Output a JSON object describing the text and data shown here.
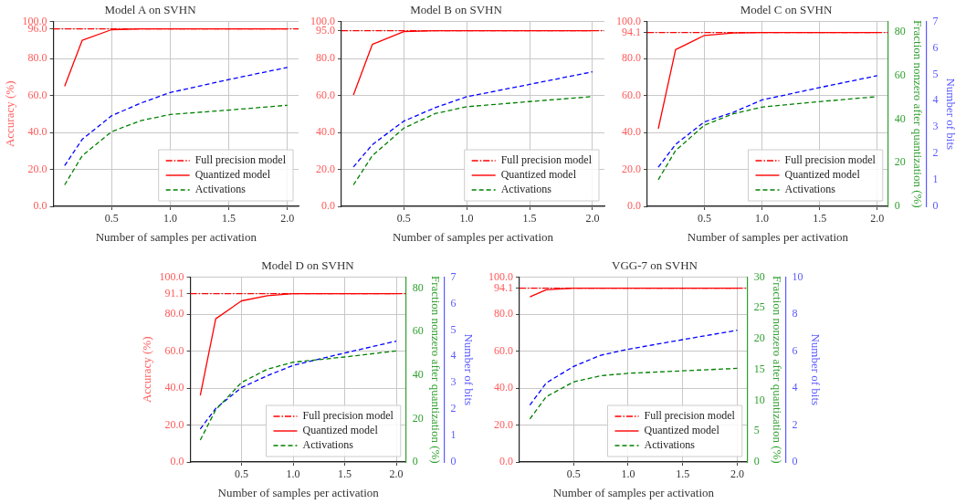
{
  "chart_data": [
    {
      "type": "line",
      "title": "Model A on SVHN",
      "xlabel": "Number of samples per activation",
      "ylabel": "Accuracy (%)",
      "x": [
        0.1,
        0.25,
        0.5,
        0.75,
        1.0,
        1.5,
        2.0
      ],
      "series": [
        {
          "name": "Quantized model",
          "color": "#ff0000",
          "line_style": "solid",
          "values": [
            65,
            89.9,
            95.6,
            96.0,
            96.0,
            96.0,
            96.0
          ]
        },
        {
          "name": "Activations",
          "color": "#008000",
          "line_style": "dashed",
          "values": [
            11.6,
            27.4,
            40.4,
            46.4,
            49.7,
            52.1,
            54.7
          ]
        },
        {
          "color": "#0000ff",
          "line_style": "dashed",
          "values": [
            22,
            36.3,
            49,
            55.9,
            61.6,
            68.6,
            75.2
          ]
        }
      ],
      "ref_lines": [
        {
          "axis": "y",
          "value": 96.0,
          "label": "Full precision model",
          "color": "#ff0000",
          "line_style": "dashed"
        }
      ],
      "xlim": [
        0.005,
        2.095
      ],
      "xticks": [
        {
          "value": 0.5,
          "label": "0.5"
        },
        {
          "value": 1.0,
          "label": "1.0"
        },
        {
          "value": 1.5,
          "label": "1.5"
        },
        {
          "value": 2.0,
          "label": "2.0"
        }
      ],
      "ylim": [
        0,
        100
      ],
      "yticks": [
        {
          "value": 0,
          "label": "0.0"
        },
        {
          "value": 20,
          "label": "20.0"
        },
        {
          "value": 40,
          "label": "40.0"
        },
        {
          "value": 60,
          "label": "60.0"
        },
        {
          "value": 80,
          "label": "80.0"
        },
        {
          "value": 96,
          "label": "96.0"
        },
        {
          "value": 100,
          "label": "100.0"
        }
      ],
      "grid": true,
      "legend": "lower right"
    },
    {
      "type": "line",
      "title": "Model B on SVHN",
      "xlabel": "Number of samples per activation",
      "x": [
        0.1,
        0.25,
        0.5,
        0.75,
        1.0,
        1.5,
        2.0
      ],
      "series": [
        {
          "name": "Quantized model",
          "color": "#ff0000",
          "line_style": "solid",
          "values": [
            60.3,
            87.6,
            94.6,
            95.0,
            95.0,
            95.0,
            95.0
          ]
        },
        {
          "name": "Activations",
          "color": "#008000",
          "line_style": "dashed",
          "values": [
            11.6,
            27.4,
            42.3,
            50.2,
            53.9,
            56.7,
            59.4
          ]
        },
        {
          "color": "#0000ff",
          "line_style": "dashed",
          "values": [
            21.3,
            33.4,
            46.1,
            53.4,
            59.3,
            66,
            72.8
          ]
        }
      ],
      "ref_lines": [
        {
          "axis": "y",
          "value": 95.0,
          "label": "Full precision model",
          "color": "#ff0000",
          "line_style": "dashed"
        }
      ],
      "xlim": [
        0.005,
        2.095
      ],
      "xticks": [
        {
          "value": 0.5,
          "label": "0.5"
        },
        {
          "value": 1.0,
          "label": "1.0"
        },
        {
          "value": 1.5,
          "label": "1.5"
        },
        {
          "value": 2.0,
          "label": "2.0"
        }
      ],
      "ylim": [
        0,
        100
      ],
      "yticks": [
        {
          "value": 0,
          "label": "0.0"
        },
        {
          "value": 20,
          "label": "20.0"
        },
        {
          "value": 40,
          "label": "40.0"
        },
        {
          "value": 60,
          "label": "60.0"
        },
        {
          "value": 80,
          "label": "80.0"
        },
        {
          "value": 95,
          "label": "95.0"
        },
        {
          "value": 100,
          "label": "100.0"
        }
      ],
      "grid": true,
      "legend": "lower right"
    },
    {
      "type": "line",
      "title": "Model C on SVHN",
      "xlabel": "Number of samples per activation",
      "y2label": "Fraction nonzero after quantization (%)",
      "y3label": "Number of bits",
      "x": [
        0.1,
        0.25,
        0.5,
        0.75,
        1.0,
        1.5,
        2.0
      ],
      "series": [
        {
          "name": "Quantized model",
          "color": "#ff0000",
          "line_style": "solid",
          "values": [
            42,
            84.8,
            92.5,
            93.8,
            94.1,
            94.1,
            94.1
          ]
        },
        {
          "name": "Activations",
          "color": "#008000",
          "line_style": "dashed",
          "axis": "y2",
          "values": [
            12.2,
            25.6,
            37.2,
            42.4,
            45.5,
            48,
            50.3
          ]
        },
        {
          "color": "#0000ff",
          "line_style": "dashed",
          "axis": "y3",
          "values": [
            1.48,
            2.35,
            3.2,
            3.56,
            4.03,
            4.5,
            4.95
          ]
        }
      ],
      "ref_lines": [
        {
          "axis": "y",
          "value": 94.1,
          "label": "Full precision model",
          "color": "#ff0000",
          "line_style": "dashed"
        }
      ],
      "xlim": [
        0.005,
        2.095
      ],
      "xticks": [
        {
          "value": 0.5,
          "label": "0.5"
        },
        {
          "value": 1.0,
          "label": "1.0"
        },
        {
          "value": 1.5,
          "label": "1.5"
        },
        {
          "value": 2.0,
          "label": "2.0"
        }
      ],
      "ylim": [
        0,
        100
      ],
      "yticks": [
        {
          "value": 0,
          "label": "0.0"
        },
        {
          "value": 20,
          "label": "20.0"
        },
        {
          "value": 40,
          "label": "40.0"
        },
        {
          "value": 60,
          "label": "60.0"
        },
        {
          "value": 80,
          "label": "80.0"
        },
        {
          "value": 94.1,
          "label": "94.1"
        },
        {
          "value": 100,
          "label": "100.0"
        }
      ],
      "y2lim": [
        0,
        84.7
      ],
      "y2ticks": [
        0,
        20,
        40,
        60,
        80
      ],
      "y3lim": [
        0,
        7
      ],
      "y3ticks": [
        0,
        1,
        2,
        3,
        4,
        5,
        6,
        7
      ],
      "grid": true,
      "legend": "lower right"
    },
    {
      "type": "line",
      "title": "Model D on SVHN",
      "xlabel": "Number of samples per activation",
      "ylabel": "Accuracy (%)",
      "y2label": "Fraction nonzero after quantization (%)",
      "y3label": "Number of bits",
      "x": [
        0.1,
        0.25,
        0.5,
        0.75,
        1.0,
        1.5,
        2.0
      ],
      "series": [
        {
          "name": "Quantized model",
          "color": "#ff0000",
          "line_style": "solid",
          "values": [
            36,
            77.5,
            87.2,
            90,
            91.1,
            91.1,
            91.1
          ]
        },
        {
          "name": "Activations",
          "color": "#008000",
          "line_style": "dashed",
          "axis": "y2",
          "values": [
            10.1,
            24,
            36.6,
            42.7,
            45.9,
            48.3,
            51.1
          ]
        },
        {
          "color": "#0000ff",
          "line_style": "dashed",
          "axis": "y3",
          "values": [
            1.25,
            2.03,
            2.82,
            3.27,
            3.66,
            4.13,
            4.58
          ]
        }
      ],
      "ref_lines": [
        {
          "axis": "y",
          "value": 91.1,
          "label": "Full precision model",
          "color": "#ff0000",
          "line_style": "dashed"
        }
      ],
      "xlim": [
        0.005,
        2.095
      ],
      "xticks": [
        {
          "value": 0.5,
          "label": "0.5"
        },
        {
          "value": 1.0,
          "label": "1.0"
        },
        {
          "value": 1.5,
          "label": "1.5"
        },
        {
          "value": 2.0,
          "label": "2.0"
        }
      ],
      "ylim": [
        0,
        100
      ],
      "yticks": [
        {
          "value": 0,
          "label": "0.0"
        },
        {
          "value": 20,
          "label": "20.0"
        },
        {
          "value": 40,
          "label": "40.0"
        },
        {
          "value": 60,
          "label": "60.0"
        },
        {
          "value": 80,
          "label": "80.0"
        },
        {
          "value": 91.1,
          "label": "91.1"
        },
        {
          "value": 100,
          "label": "100.0"
        }
      ],
      "y2lim": [
        0,
        85
      ],
      "y2ticks": [
        0,
        20,
        40,
        60,
        80
      ],
      "y3lim": [
        0,
        7
      ],
      "y3ticks": [
        0,
        1,
        2,
        3,
        4,
        5,
        6,
        7
      ],
      "grid": true,
      "legend": "lower right"
    },
    {
      "type": "line",
      "title": "VGG-7 on SVHN",
      "xlabel": "Number of samples per activation",
      "y2label": "Fraction nonzero after quantization (%)",
      "y3label": "Number of bits",
      "x": [
        0.1,
        0.25,
        0.5,
        0.75,
        1.0,
        1.5,
        2.0
      ],
      "series": [
        {
          "name": "Quantized model",
          "color": "#ff0000",
          "line_style": "solid",
          "values": [
            89.4,
            93.2,
            94.1,
            94.1,
            94.1,
            94.1,
            94.1
          ]
        },
        {
          "name": "Activations",
          "color": "#008000",
          "line_style": "dashed",
          "axis": "y2",
          "values": [
            7.0,
            10.6,
            13,
            14,
            14.4,
            14.8,
            15.2
          ]
        },
        {
          "color": "#0000ff",
          "line_style": "dashed",
          "axis": "y3",
          "values": [
            3.08,
            4.28,
            5.17,
            5.78,
            6.1,
            6.62,
            7.13
          ]
        }
      ],
      "ref_lines": [
        {
          "axis": "y",
          "value": 94.1,
          "label": "Full precision model",
          "color": "#ff0000",
          "line_style": "dashed"
        }
      ],
      "xlim": [
        0.005,
        2.095
      ],
      "xticks": [
        {
          "value": 0.5,
          "label": "0.5"
        },
        {
          "value": 1.0,
          "label": "1.0"
        },
        {
          "value": 1.5,
          "label": "1.5"
        },
        {
          "value": 2.0,
          "label": "2.0"
        }
      ],
      "ylim": [
        0,
        100
      ],
      "yticks": [
        {
          "value": 0,
          "label": "0.0"
        },
        {
          "value": 20,
          "label": "20.0"
        },
        {
          "value": 40,
          "label": "40.0"
        },
        {
          "value": 60,
          "label": "60.0"
        },
        {
          "value": 80,
          "label": "80.0"
        },
        {
          "value": 94.1,
          "label": "94.1"
        },
        {
          "value": 100,
          "label": "100.0"
        }
      ],
      "y2lim": [
        0,
        30
      ],
      "y2ticks": [
        0,
        5,
        10,
        15,
        20,
        25,
        30
      ],
      "y3lim": [
        0,
        10
      ],
      "y3ticks": [
        0,
        2,
        4,
        6,
        8,
        10
      ],
      "grid": true,
      "legend": "lower right"
    }
  ]
}
